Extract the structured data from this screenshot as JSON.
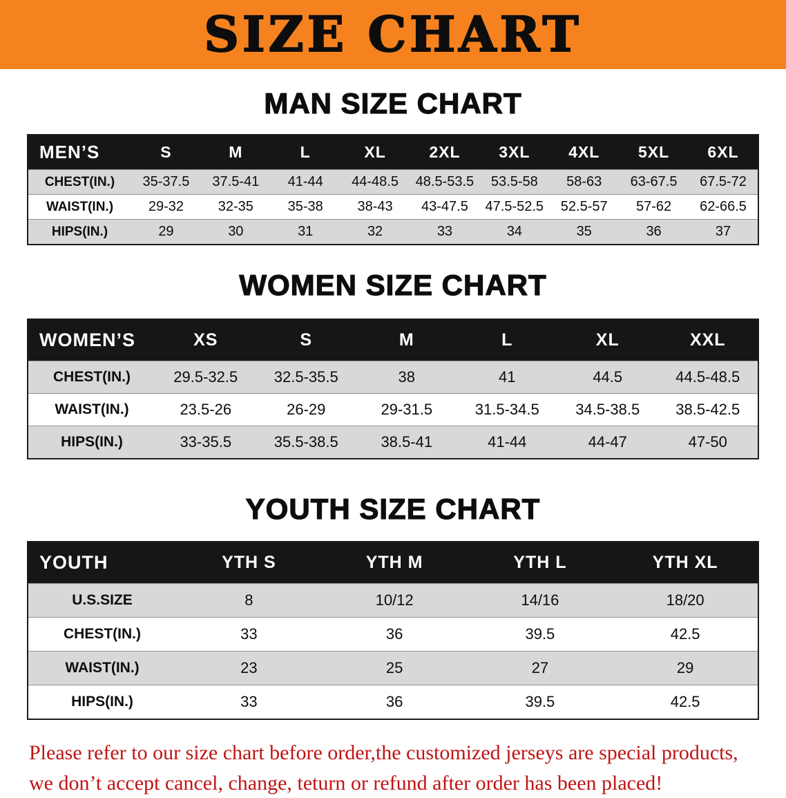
{
  "banner": {
    "title": "SIZE CHART",
    "bg_color": "#f5821f"
  },
  "sections": {
    "men": {
      "heading": "MAN SIZE CHART",
      "table": {
        "header": [
          "MEN’S",
          "S",
          "M",
          "L",
          "XL",
          "2XL",
          "3XL",
          "4XL",
          "5XL",
          "6XL"
        ],
        "rows": [
          [
            "CHEST(IN.)",
            "35-37.5",
            "37.5-41",
            "41-44",
            "44-48.5",
            "48.5-53.5",
            "53.5-58",
            "58-63",
            "63-67.5",
            "67.5-72"
          ],
          [
            "WAIST(IN.)",
            "29-32",
            "32-35",
            "35-38",
            "38-43",
            "43-47.5",
            "47.5-52.5",
            "52.5-57",
            "57-62",
            "62-66.5"
          ],
          [
            "HIPS(IN.)",
            "29",
            "30",
            "31",
            "32",
            "33",
            "34",
            "35",
            "36",
            "37"
          ]
        ]
      }
    },
    "women": {
      "heading": "WOMEN SIZE CHART",
      "table": {
        "header": [
          "WOMEN’S",
          "XS",
          "S",
          "M",
          "L",
          "XL",
          "XXL"
        ],
        "rows": [
          [
            "CHEST(IN.)",
            "29.5-32.5",
            "32.5-35.5",
            "38",
            "41",
            "44.5",
            "44.5-48.5"
          ],
          [
            "WAIST(IN.)",
            "23.5-26",
            "26-29",
            "29-31.5",
            "31.5-34.5",
            "34.5-38.5",
            "38.5-42.5"
          ],
          [
            "HIPS(IN.)",
            "33-35.5",
            "35.5-38.5",
            "38.5-41",
            "41-44",
            "44-47",
            "47-50"
          ]
        ]
      }
    },
    "youth": {
      "heading": "YOUTH SIZE CHART",
      "table": {
        "header": [
          "YOUTH",
          "YTH S",
          "YTH M",
          "YTH L",
          "YTH XL"
        ],
        "rows": [
          [
            "U.S.SIZE",
            "8",
            "10/12",
            "14/16",
            "18/20"
          ],
          [
            "CHEST(IN.)",
            "33",
            "36",
            "39.5",
            "42.5"
          ],
          [
            "WAIST(IN.)",
            "23",
            "25",
            "27",
            "29"
          ],
          [
            "HIPS(IN.)",
            "33",
            "36",
            "39.5",
            "42.5"
          ]
        ]
      }
    }
  },
  "disclaimer": {
    "line1": "Please refer to our size chart before order,the customized jerseys are special products,",
    "line2": "we don’t accept cancel, change, teturn or refund after order has been placed!",
    "text_color": "#c01414"
  }
}
